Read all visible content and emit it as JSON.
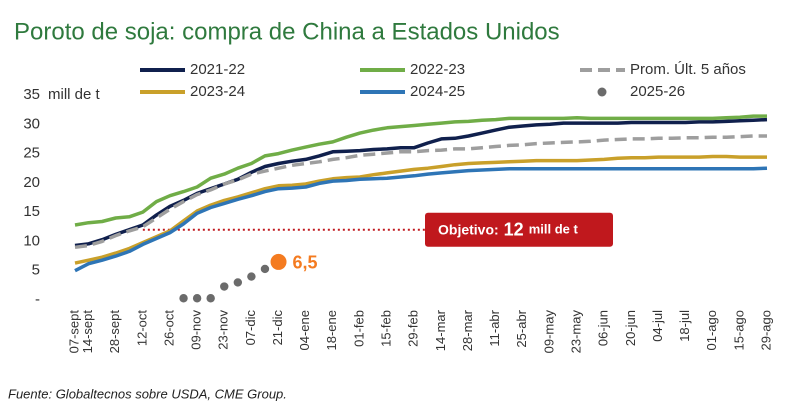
{
  "chart_data": {
    "type": "line",
    "title": "Poroto de soja: compra de China a Estados Unidos",
    "y_label": "mill de t",
    "source": "Fuente: Globaltecnos sobre USDA, CME Group.",
    "categories": [
      "07-sept",
      "14-sept",
      null,
      "28-sept",
      null,
      "12-oct",
      null,
      "26-oct",
      null,
      "09-nov",
      null,
      "23-nov",
      null,
      "07-dic",
      null,
      "21-dic",
      null,
      "04-ene",
      null,
      "18-ene",
      null,
      "01-feb",
      null,
      "15-feb",
      null,
      "29-feb",
      null,
      "14-mar",
      null,
      "28-mar",
      null,
      "11-abr",
      null,
      "25-abr",
      null,
      "09-may",
      null,
      "23-may",
      null,
      "06-jun",
      null,
      "20-jun",
      null,
      "04-jul",
      null,
      "18-jul",
      null,
      "01-ago",
      null,
      "15-ago",
      null,
      "29-ago"
    ],
    "ylim": [
      0,
      35
    ],
    "yticks": [
      {
        "value": 0,
        "label": "-"
      },
      5,
      10,
      15,
      20,
      25,
      30,
      35
    ],
    "grid": false,
    "series": [
      {
        "name": "2021-22",
        "color": "#10204d",
        "style": "line",
        "values": [
          9.3,
          9.6,
          10.3,
          11.2,
          12.0,
          12.8,
          14.5,
          16.0,
          17.0,
          18.2,
          19.0,
          19.8,
          20.6,
          21.8,
          22.8,
          23.3,
          23.7,
          24.0,
          24.6,
          25.3,
          25.4,
          25.5,
          25.7,
          25.8,
          26.0,
          26.0,
          26.8,
          27.5,
          27.6,
          28.0,
          28.5,
          29.0,
          29.5,
          29.7,
          29.9,
          30.0,
          30.2,
          30.2,
          30.2,
          30.2,
          30.2,
          30.3,
          30.3,
          30.3,
          30.3,
          30.3,
          30.4,
          30.4,
          30.5,
          30.6,
          30.7,
          30.8
        ]
      },
      {
        "name": "2022-23",
        "color": "#70ad47",
        "style": "line",
        "values": [
          12.8,
          13.2,
          13.4,
          14.0,
          14.2,
          15.0,
          16.8,
          17.8,
          18.5,
          19.3,
          20.8,
          21.5,
          22.5,
          23.3,
          24.6,
          25.0,
          25.6,
          26.1,
          26.6,
          27.0,
          27.8,
          28.5,
          29.0,
          29.4,
          29.6,
          29.8,
          30.0,
          30.2,
          30.4,
          30.5,
          30.7,
          30.8,
          31.0,
          31.0,
          31.0,
          31.0,
          31.0,
          31.1,
          31.0,
          31.0,
          31.0,
          31.0,
          31.0,
          31.0,
          31.0,
          31.0,
          31.0,
          31.0,
          31.1,
          31.2,
          31.4,
          31.4
        ]
      },
      {
        "name": "Prom. Últ. 5 años",
        "color": "#9e9e9e",
        "style": "dashed",
        "values": [
          9.0,
          9.3,
          10.0,
          11.0,
          11.8,
          12.5,
          14.0,
          15.5,
          16.8,
          18.0,
          18.8,
          19.8,
          20.5,
          21.5,
          22.0,
          22.5,
          23.0,
          23.3,
          23.6,
          24.0,
          24.3,
          24.7,
          24.9,
          25.1,
          25.3,
          25.3,
          25.5,
          25.6,
          25.8,
          25.8,
          26.0,
          26.2,
          26.4,
          26.5,
          26.7,
          26.8,
          26.9,
          27.0,
          27.1,
          27.3,
          27.4,
          27.5,
          27.5,
          27.6,
          27.6,
          27.7,
          27.7,
          27.8,
          27.8,
          27.9,
          28.0,
          28.0
        ]
      },
      {
        "name": "2023-24",
        "color": "#c9a02a",
        "style": "line",
        "values": [
          6.3,
          6.8,
          7.3,
          8.0,
          8.8,
          9.8,
          10.8,
          11.8,
          13.5,
          15.2,
          16.2,
          17.0,
          17.6,
          18.3,
          19.0,
          19.5,
          19.6,
          19.8,
          20.3,
          20.7,
          20.9,
          21.0,
          21.4,
          21.7,
          22.0,
          22.3,
          22.5,
          22.8,
          23.1,
          23.3,
          23.4,
          23.5,
          23.6,
          23.7,
          23.8,
          23.8,
          23.8,
          23.8,
          23.9,
          24.0,
          24.2,
          24.3,
          24.3,
          24.4,
          24.4,
          24.4,
          24.4,
          24.5,
          24.5,
          24.4,
          24.4,
          24.4
        ]
      },
      {
        "name": "2024-25",
        "color": "#2e75b6",
        "style": "line",
        "values": [
          5.0,
          6.2,
          6.8,
          7.5,
          8.3,
          9.5,
          10.5,
          11.5,
          13.0,
          14.8,
          15.8,
          16.5,
          17.2,
          17.8,
          18.5,
          19.0,
          19.1,
          19.3,
          19.9,
          20.3,
          20.4,
          20.6,
          20.7,
          20.8,
          21.0,
          21.2,
          21.5,
          21.7,
          21.9,
          22.1,
          22.2,
          22.3,
          22.4,
          22.4,
          22.4,
          22.4,
          22.4,
          22.4,
          22.4,
          22.4,
          22.4,
          22.4,
          22.4,
          22.4,
          22.4,
          22.4,
          22.4,
          22.4,
          22.4,
          22.4,
          22.4,
          22.5
        ]
      },
      {
        "name": "2025-26",
        "color": "#6b6b6b",
        "style": "dots",
        "highlight_color": "#f47b20",
        "values": [
          null,
          null,
          null,
          null,
          null,
          null,
          null,
          null,
          0.3,
          0.3,
          0.3,
          2.3,
          3.0,
          4.0,
          5.3,
          6.5,
          null,
          null,
          null,
          null,
          null,
          null,
          null,
          null,
          null,
          null,
          null,
          null,
          null,
          null,
          null,
          null,
          null,
          null,
          null,
          null,
          null,
          null,
          null,
          null,
          null,
          null,
          null,
          null,
          null,
          null,
          null,
          null,
          null,
          null,
          null,
          null
        ],
        "value_labels": [
          null,
          null,
          null,
          null,
          null,
          null,
          null,
          null,
          null,
          null,
          null,
          null,
          null,
          null,
          null,
          "6,5",
          null,
          null,
          null,
          null,
          null,
          null,
          null,
          null,
          null,
          null,
          null,
          null,
          null,
          null,
          null,
          null,
          null,
          null,
          null,
          null,
          null,
          null,
          null,
          null,
          null,
          null,
          null,
          null,
          null,
          null,
          null,
          null,
          null,
          null,
          null,
          null
        ]
      }
    ],
    "annotation": {
      "label": "Objetivo:",
      "value": 12,
      "unit": "mill de t",
      "color": "#c0181d"
    }
  }
}
